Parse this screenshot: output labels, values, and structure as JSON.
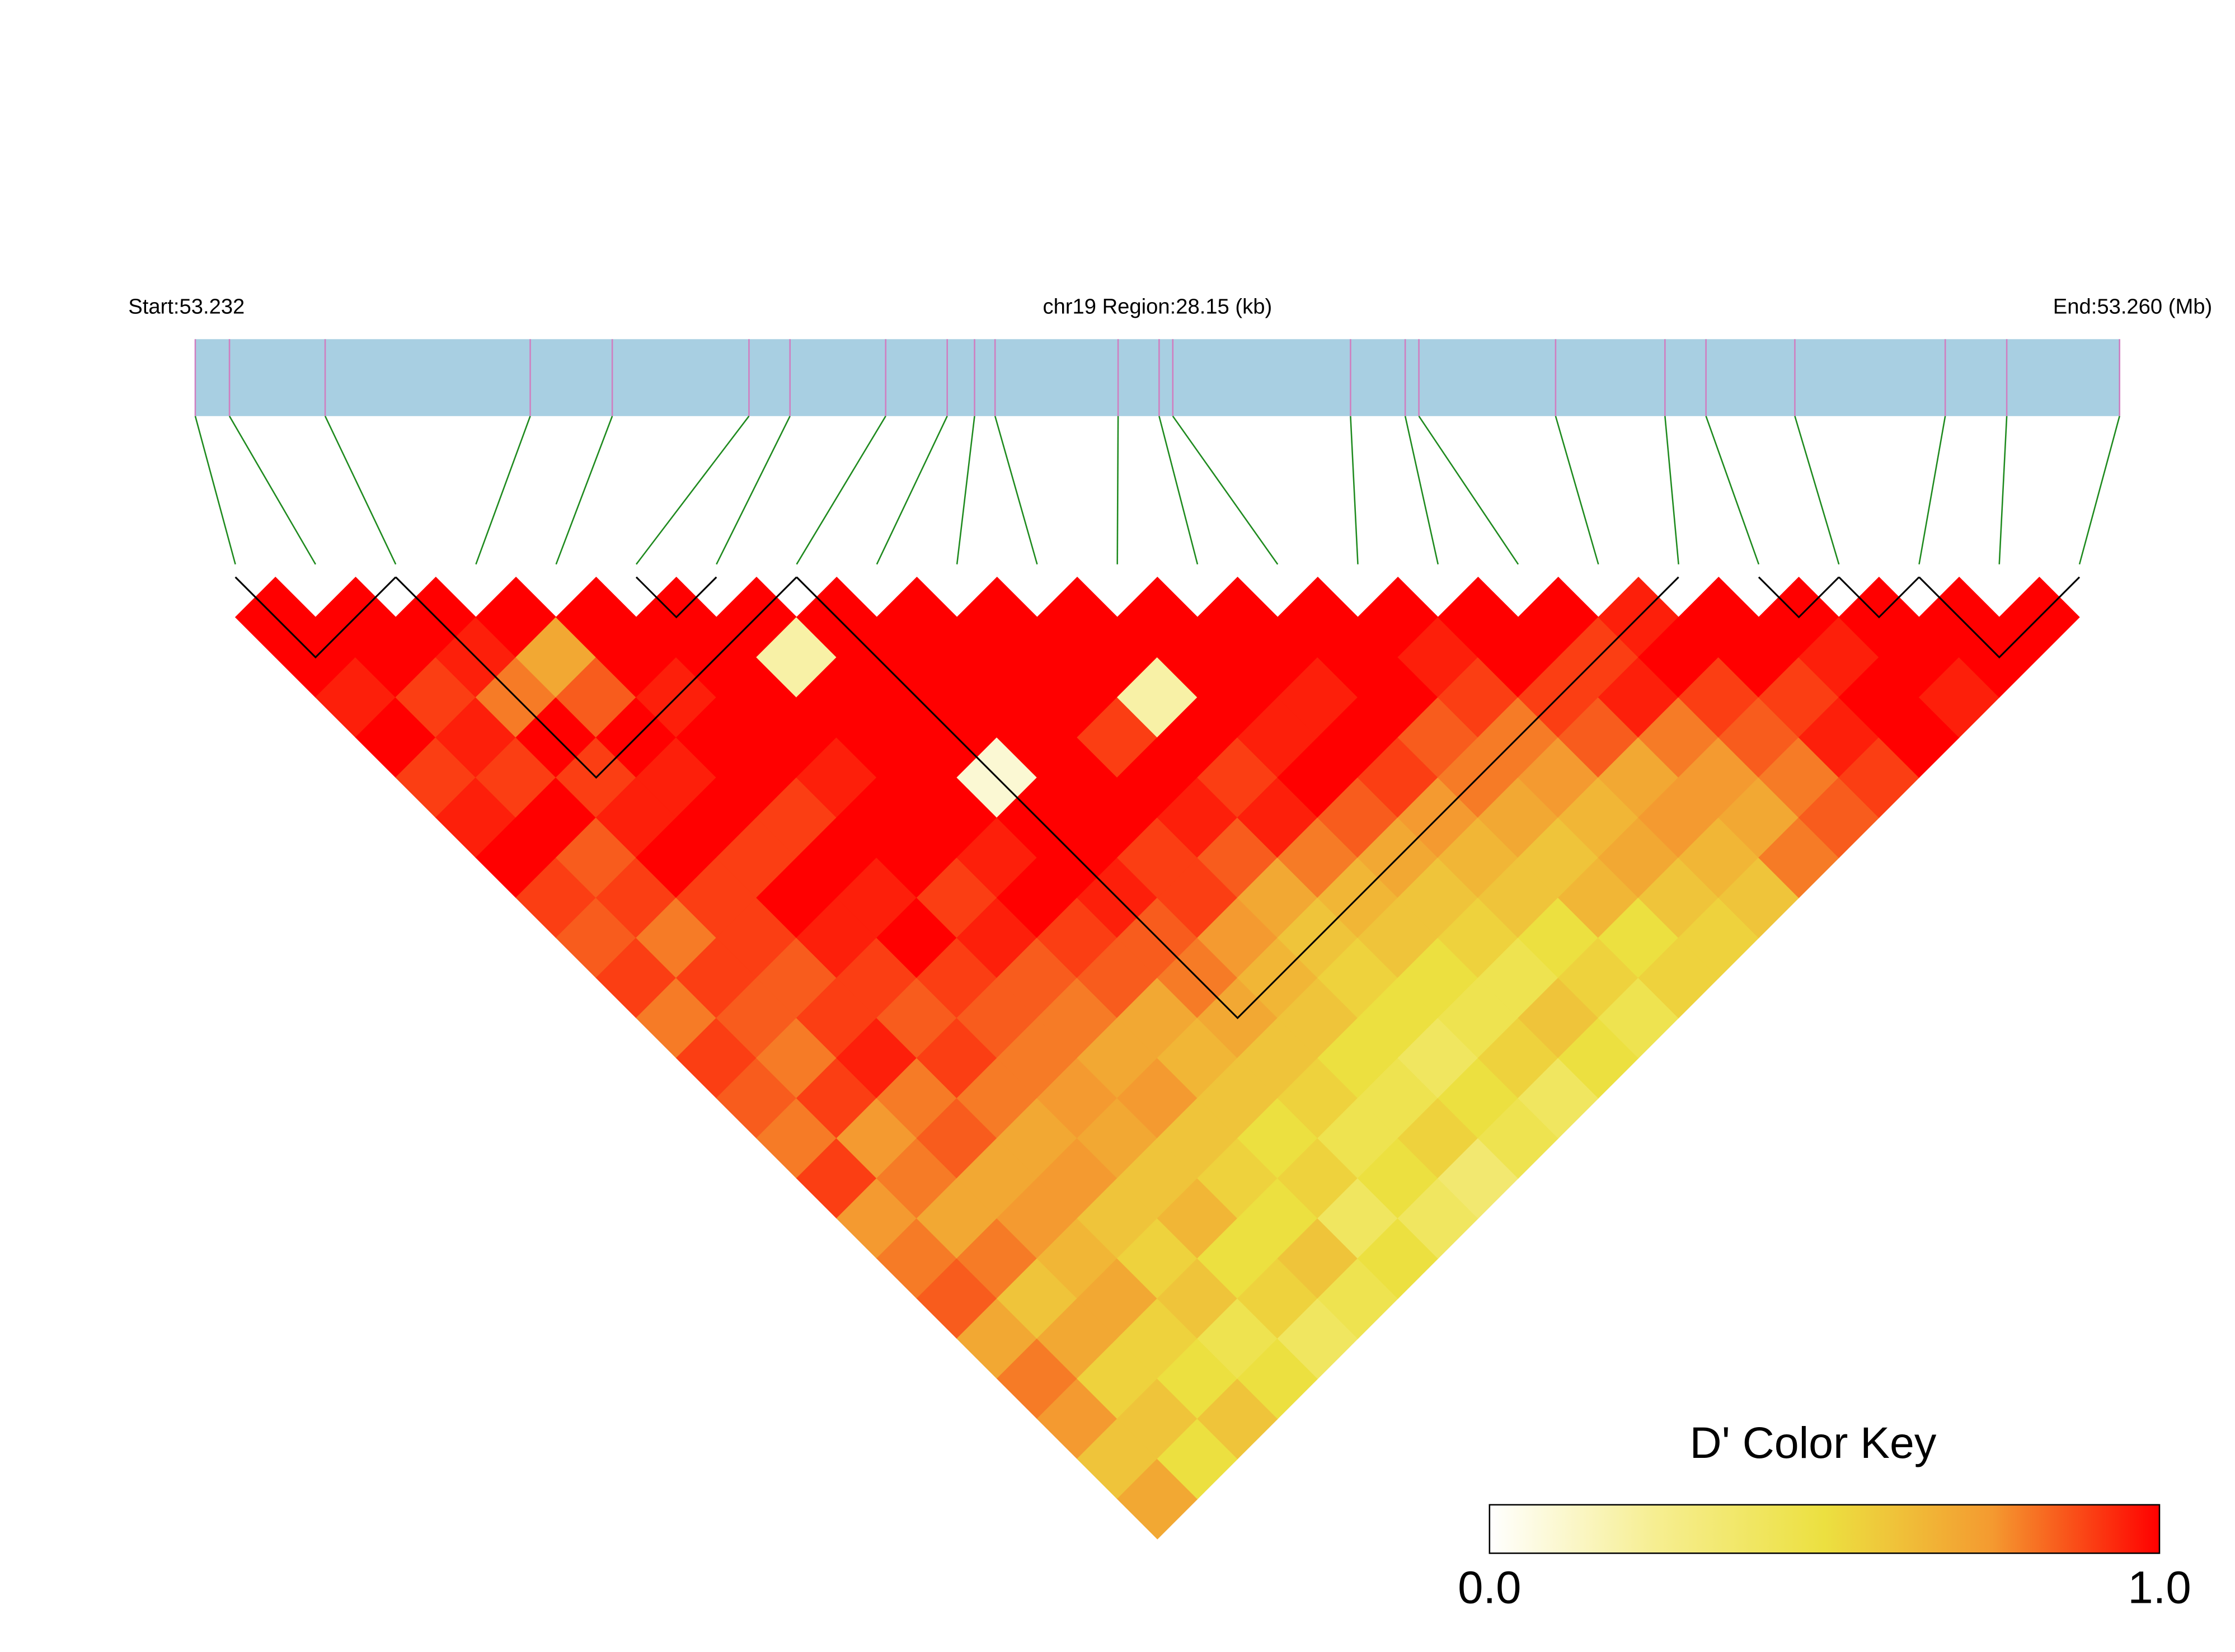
{
  "chart_data": {
    "type": "ld_heatmap",
    "start_label": "Start:53.232",
    "region_label": "chr19 Region:28.15 (kb)",
    "end_label": "End:53.260 (Mb)",
    "key_title": "D' Color Key",
    "xlim": [
      0,
      28.15
    ],
    "snp_positions": [
      0,
      0.5,
      1.9,
      4.9,
      6.1,
      8.1,
      8.7,
      10.1,
      11.0,
      11.4,
      11.7,
      13.5,
      14.1,
      14.3,
      16.9,
      17.7,
      17.9,
      19.9,
      21.5,
      22.1,
      23.4,
      25.6,
      26.5,
      28.15
    ],
    "dprime": [
      [
        1,
        1,
        0.95,
        1,
        0.9,
        0.95,
        1,
        0.9,
        0.85,
        0.9,
        0.8,
        0.9,
        0.85,
        0.8,
        0.9,
        0.75,
        0.8,
        0.85,
        0.7,
        0.8,
        0.75,
        0.6,
        0.7
      ],
      [
        1,
        1,
        0.9,
        0.95,
        0.9,
        1,
        0.85,
        0.9,
        0.8,
        0.9,
        0.85,
        0.8,
        0.9,
        0.75,
        0.8,
        0.7,
        0.8,
        0.6,
        0.7,
        0.55,
        0.6,
        0.5
      ],
      [
        1,
        0.95,
        0.8,
        1,
        0.9,
        0.95,
        1,
        0.9,
        0.9,
        0.85,
        0.9,
        0.95,
        0.8,
        0.85,
        0.7,
        0.75,
        0.65,
        0.7,
        0.55,
        0.5,
        0.6
      ],
      [
        1,
        0.7,
        0.85,
        1,
        0.95,
        1,
        0.9,
        1,
        0.95,
        0.9,
        0.85,
        0.9,
        0.8,
        0.7,
        0.75,
        0.6,
        0.55,
        0.6,
        0.45,
        0.5
      ],
      [
        1,
        1,
        0.95,
        1,
        1,
        0.9,
        1,
        0.95,
        1,
        0.9,
        0.85,
        0.8,
        0.75,
        0.7,
        0.6,
        0.65,
        0.5,
        0.55,
        0.4
      ],
      [
        1,
        1,
        1,
        1,
        0.95,
        1,
        1,
        0.9,
        0.95,
        0.85,
        0.8,
        0.7,
        0.75,
        0.6,
        0.55,
        0.5,
        0.6,
        0.45
      ],
      [
        1,
        0.2,
        1,
        1,
        1,
        1,
        0.95,
        1,
        0.9,
        0.85,
        0.7,
        0.65,
        0.6,
        0.5,
        0.55,
        0.4,
        0.5
      ],
      [
        1,
        1,
        1,
        1,
        0.1,
        1,
        1,
        0.95,
        0.85,
        0.8,
        0.7,
        0.6,
        0.55,
        0.45,
        0.5,
        0.4
      ],
      [
        1,
        1,
        1,
        1,
        1,
        1,
        0.9,
        0.9,
        0.75,
        0.65,
        0.6,
        0.5,
        0.45,
        0.55,
        0.35
      ],
      [
        1,
        1,
        1,
        0.9,
        1,
        0.95,
        0.85,
        0.7,
        0.6,
        0.55,
        0.5,
        0.4,
        0.5,
        0.45
      ],
      [
        1,
        1,
        0.2,
        1,
        0.9,
        0.95,
        0.8,
        0.65,
        0.6,
        0.5,
        0.45,
        0.55,
        0.4
      ],
      [
        1,
        1,
        1,
        0.95,
        1,
        0.85,
        0.7,
        0.6,
        0.55,
        0.45,
        0.6,
        0.5
      ],
      [
        1,
        1,
        0.95,
        1,
        0.9,
        0.75,
        0.65,
        0.6,
        0.5,
        0.55,
        0.45
      ],
      [
        1,
        1,
        1,
        0.85,
        0.8,
        0.7,
        0.6,
        0.65,
        0.5,
        0.55
      ],
      [
        1,
        0.95,
        0.9,
        0.8,
        0.75,
        0.65,
        0.7,
        0.6,
        0.55
      ],
      [
        1,
        1,
        0.9,
        0.85,
        0.7,
        0.75,
        0.65,
        0.6
      ],
      [
        1,
        0.9,
        0.95,
        0.8,
        0.75,
        0.7,
        0.8
      ],
      [
        0.95,
        1,
        0.9,
        0.85,
        0.8,
        0.85
      ],
      [
        1,
        1,
        0.9,
        0.95,
        0.9
      ],
      [
        1,
        0.95,
        1,
        1
      ],
      [
        1,
        1,
        0.95
      ],
      [
        1,
        1
      ],
      [
        1
      ]
    ],
    "blocks": [
      [
        0,
        2
      ],
      [
        2,
        7
      ],
      [
        5,
        6
      ],
      [
        7,
        18
      ],
      [
        19,
        20
      ],
      [
        20,
        21
      ],
      [
        21,
        23
      ]
    ],
    "colormap": [
      "#ffffff",
      "#f6ee90",
      "#ece040",
      "#f49a30",
      "#ff0000"
    ],
    "key_lim": [
      0,
      1
    ],
    "key_ticks": [
      {
        "value": 0,
        "label": "0.0"
      },
      {
        "value": 1,
        "label": "1.0"
      }
    ],
    "bar_color": "#a8cfe2",
    "tick_color": "#d07ec0",
    "line_color": "#1e8a1e",
    "block_color": "#000000"
  }
}
